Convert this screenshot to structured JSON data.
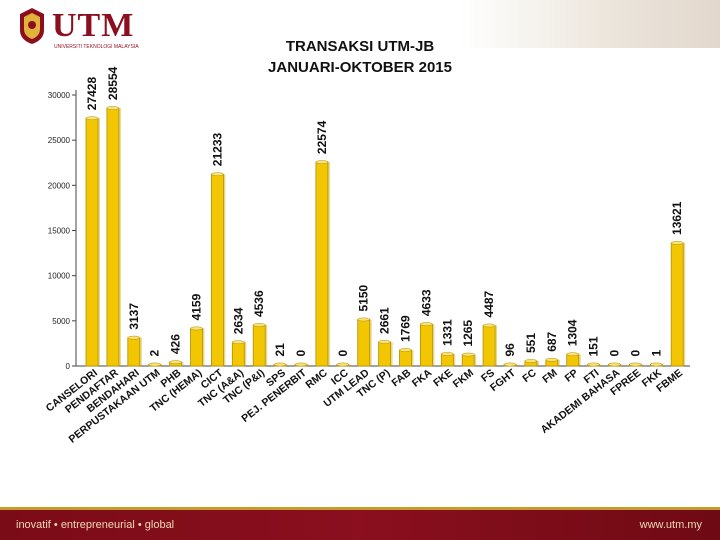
{
  "header": {
    "logo_text": "UTM",
    "logo_subtitle": "UNIVERSITI TEKNOLOGI MALAYSIA",
    "title_line1": "TRANSAKSI UTM-JB",
    "title_line2": "JANUARI-OKTOBER 2015"
  },
  "footer": {
    "tagline": "inovatif • entrepreneurial • global",
    "url": "www.utm.my"
  },
  "colors": {
    "bar": "#F2C600",
    "bar_edge": "#B28F00",
    "bar_shadow": "#C9A800",
    "footer": "#8B0F1E",
    "accent_gold": "#C59B2B"
  },
  "chart_data": {
    "type": "bar",
    "title": "TRANSAKSI UTM-JB JANUARI-OKTOBER 2015",
    "categories": [
      "CANSELORI",
      "PENDAFTAR",
      "BENDAHARI",
      "PERPUSTAKAAN UTM",
      "PHB",
      "TNC (HEMA)",
      "CICT",
      "TNC (A&A)",
      "TNC (P&I)",
      "SPS",
      "PEJ. PENERBIT",
      "RMC",
      "ICC",
      "UTM LEAD",
      "TNC (P)",
      "FAB",
      "FKA",
      "FKE",
      "FKM",
      "FS",
      "FGHT",
      "FC",
      "FM",
      "FP",
      "FTI",
      "AKADEMI BAHASA",
      "FPREE",
      "FKK",
      "FBME"
    ],
    "values": [
      27428,
      28554,
      3137,
      2,
      426,
      4159,
      21233,
      2634,
      4536,
      21,
      0,
      22574,
      0,
      5150,
      2661,
      1769,
      4633,
      1331,
      1265,
      4487,
      96,
      551,
      687,
      1304,
      151,
      0,
      0,
      1,
      13621
    ],
    "value_labels": [
      "27428",
      "28554",
      "3137",
      "2",
      "426",
      "4159",
      "21233",
      "2634",
      "4536",
      "21",
      "0",
      "22574",
      "0",
      "5150",
      "2661",
      "1769",
      "4633",
      "1331",
      "1265",
      "4487",
      "96",
      "551",
      "687",
      "1304",
      "151",
      "0",
      "0",
      "1",
      "13621"
    ],
    "yticks": [
      "0",
      "5000",
      "10000",
      "15000",
      "20000",
      "25000",
      "30000"
    ],
    "ylim": [
      0,
      30000
    ],
    "xlabel": "",
    "ylabel": "",
    "grid": false,
    "legend": "none"
  }
}
